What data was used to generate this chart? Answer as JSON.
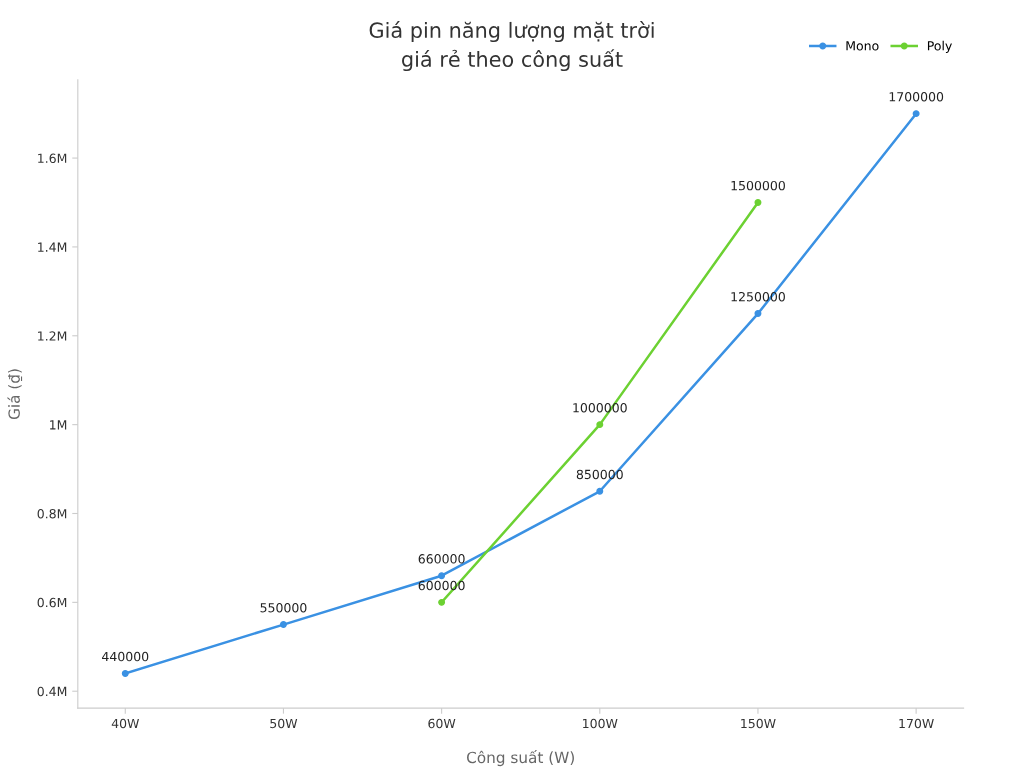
{
  "chart_data": {
    "type": "line",
    "title": "Giá pin năng lượng mặt trời\ngiá rẻ theo công suất",
    "xlabel": "Công suất (W)",
    "ylabel": "Giá (₫)",
    "categories": [
      "40W",
      "50W",
      "60W",
      "100W",
      "150W",
      "170W"
    ],
    "series": [
      {
        "name": "Mono",
        "color": "#3a91e3",
        "values": [
          440000,
          550000,
          660000,
          850000,
          1250000,
          1700000
        ]
      },
      {
        "name": "Poly",
        "color": "#6cd132",
        "values": [
          null,
          null,
          600000,
          1000000,
          1500000,
          null
        ]
      }
    ],
    "ylim": [
      362000,
      1776000
    ],
    "yticks": [
      {
        "value": 400000,
        "label": "0.4M"
      },
      {
        "value": 600000,
        "label": "0.6M"
      },
      {
        "value": 800000,
        "label": "0.8M"
      },
      {
        "value": 1000000,
        "label": "1M"
      },
      {
        "value": 1200000,
        "label": "1.2M"
      },
      {
        "value": 1400000,
        "label": "1.4M"
      },
      {
        "value": 1600000,
        "label": "1.6M"
      }
    ],
    "data_labels": true,
    "legend": "top right",
    "grid": false,
    "marker": "circle",
    "line_style": "solid"
  }
}
